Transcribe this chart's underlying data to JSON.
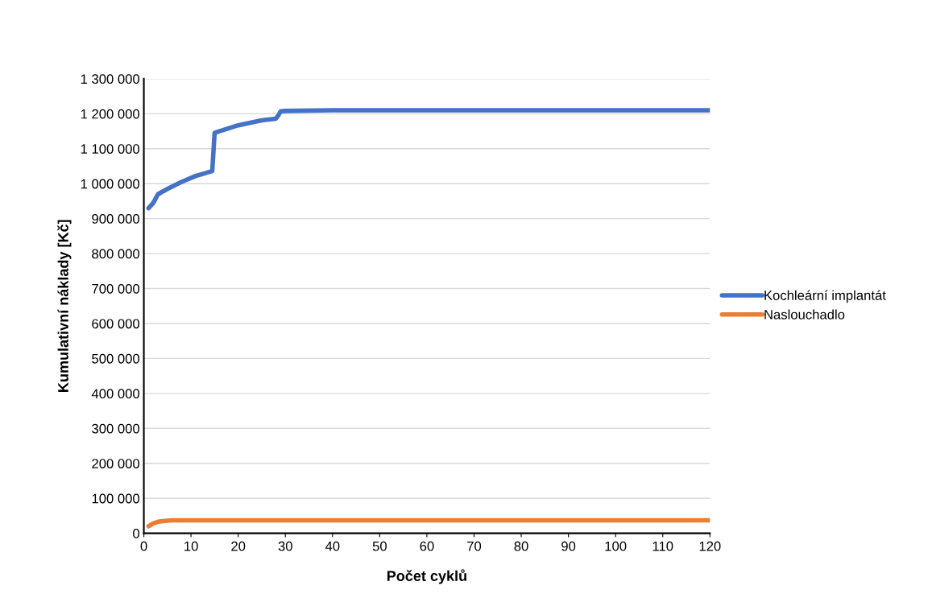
{
  "chart_data": {
    "type": "line",
    "xlabel": "Počet cyklů",
    "ylabel": "Kumulativní náklady [Kč]",
    "xlim": [
      0,
      120
    ],
    "xticks": [
      0,
      10,
      20,
      30,
      40,
      50,
      60,
      70,
      80,
      90,
      100,
      110,
      120
    ],
    "ylim": [
      0,
      1300000
    ],
    "yticks": [
      {
        "value": 0,
        "label": "0"
      },
      {
        "value": 100000,
        "label": "100 000"
      },
      {
        "value": 200000,
        "label": "200 000"
      },
      {
        "value": 300000,
        "label": "300 000"
      },
      {
        "value": 400000,
        "label": "400 000"
      },
      {
        "value": 500000,
        "label": "500 000"
      },
      {
        "value": 600000,
        "label": "600 000"
      },
      {
        "value": 700000,
        "label": "700 000"
      },
      {
        "value": 800000,
        "label": "800 000"
      },
      {
        "value": 900000,
        "label": "900 000"
      },
      {
        "value": 1000000,
        "label": "1 000 000"
      },
      {
        "value": 1100000,
        "label": "1 100 000"
      },
      {
        "value": 1200000,
        "label": "1 200 000"
      },
      {
        "value": 1300000,
        "label": "1 300 000"
      }
    ],
    "grid": "y",
    "legend": "right",
    "marker": "none",
    "line_style": "solid",
    "series": [
      {
        "name": "Kochleární implantát",
        "color": "#4472c4",
        "x": [
          1,
          2,
          3,
          5,
          8,
          11,
          14,
          14.5,
          15,
          16,
          20,
          25,
          28,
          28.5,
          29,
          30,
          40,
          60,
          120
        ],
        "values": [
          930000,
          945000,
          970000,
          985000,
          1005000,
          1022000,
          1034000,
          1036000,
          1145000,
          1150000,
          1167000,
          1181000,
          1186000,
          1195000,
          1207000,
          1208000,
          1210000,
          1210000,
          1210000
        ]
      },
      {
        "name": "Naslouchadlo",
        "color": "#ed7d31",
        "x": [
          1,
          2,
          3,
          4,
          6,
          8,
          120
        ],
        "values": [
          20000,
          28000,
          33000,
          35000,
          37000,
          37000,
          37000
        ]
      }
    ]
  }
}
